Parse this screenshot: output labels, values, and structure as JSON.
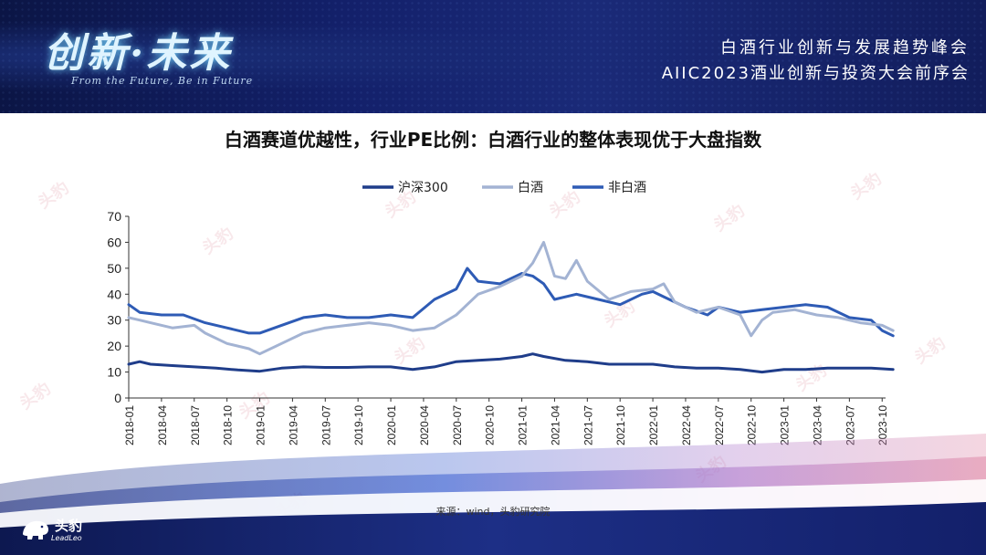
{
  "header": {
    "logo_text": "创新·未来",
    "logo_subtitle": "From the Future, Be in Future",
    "summit_title": "白酒行业创新与发展趋势峰会",
    "summit_subtitle": "AIIC2023酒业创新与投资大会前序会"
  },
  "watermark": "头豹",
  "colors": {
    "hs300": "#1f3d8a",
    "baijiu": "#a3b3d3",
    "non_baijiu": "#2e5bb5",
    "header_bg": "#13206a"
  },
  "chart_data": {
    "type": "line",
    "title": "白酒赛道优越性，行业PE比例：白酒行业的整体表现优于大盘指数",
    "xlabel": "",
    "ylabel": "",
    "ylim": [
      0,
      70
    ],
    "yticks": [
      0,
      10,
      20,
      30,
      40,
      50,
      60,
      70
    ],
    "x_tick_labels": [
      "2018-01",
      "2018-04",
      "2018-07",
      "2018-10",
      "2019-01",
      "2019-04",
      "2019-07",
      "2019-10",
      "2020-01",
      "2020-04",
      "2020-07",
      "2020-10",
      "2021-01",
      "2021-04",
      "2021-07",
      "2021-10",
      "2022-01",
      "2022-04",
      "2022-07",
      "2022-10",
      "2023-01",
      "2023-04",
      "2023-07",
      "2023-10"
    ],
    "legend_position": "top-center",
    "grid": false,
    "series": [
      {
        "name": "沪深300",
        "points": [
          [
            "2018-01",
            13
          ],
          [
            "2018-02",
            14
          ],
          [
            "2018-03",
            13
          ],
          [
            "2018-05",
            12.5
          ],
          [
            "2018-07",
            12
          ],
          [
            "2018-09",
            11.5
          ],
          [
            "2018-11",
            10.8
          ],
          [
            "2019-01",
            10.3
          ],
          [
            "2019-03",
            11.5
          ],
          [
            "2019-05",
            12
          ],
          [
            "2019-07",
            11.8
          ],
          [
            "2019-09",
            11.8
          ],
          [
            "2019-11",
            12
          ],
          [
            "2020-01",
            12
          ],
          [
            "2020-03",
            11
          ],
          [
            "2020-05",
            12
          ],
          [
            "2020-07",
            14
          ],
          [
            "2020-09",
            14.5
          ],
          [
            "2020-11",
            15
          ],
          [
            "2021-01",
            16
          ],
          [
            "2021-02",
            17
          ],
          [
            "2021-03",
            16
          ],
          [
            "2021-05",
            14.5
          ],
          [
            "2021-07",
            14
          ],
          [
            "2021-09",
            13
          ],
          [
            "2021-11",
            13
          ],
          [
            "2022-01",
            13
          ],
          [
            "2022-03",
            12
          ],
          [
            "2022-05",
            11.5
          ],
          [
            "2022-07",
            11.5
          ],
          [
            "2022-09",
            11
          ],
          [
            "2022-11",
            10
          ],
          [
            "2023-01",
            11
          ],
          [
            "2023-03",
            11
          ],
          [
            "2023-05",
            11.5
          ],
          [
            "2023-07",
            11.5
          ],
          [
            "2023-09",
            11.5
          ],
          [
            "2023-11",
            11
          ]
        ]
      },
      {
        "name": "白酒",
        "points": [
          [
            "2018-01",
            31
          ],
          [
            "2018-02",
            30
          ],
          [
            "2018-03",
            29
          ],
          [
            "2018-05",
            27
          ],
          [
            "2018-07",
            28
          ],
          [
            "2018-08",
            25
          ],
          [
            "2018-10",
            21
          ],
          [
            "2018-12",
            19
          ],
          [
            "2019-01",
            17
          ],
          [
            "2019-03",
            21
          ],
          [
            "2019-05",
            25
          ],
          [
            "2019-07",
            27
          ],
          [
            "2019-09",
            28
          ],
          [
            "2019-11",
            29
          ],
          [
            "2020-01",
            28
          ],
          [
            "2020-03",
            26
          ],
          [
            "2020-05",
            27
          ],
          [
            "2020-07",
            32
          ],
          [
            "2020-09",
            40
          ],
          [
            "2020-11",
            43
          ],
          [
            "2021-01",
            47
          ],
          [
            "2021-02",
            52
          ],
          [
            "2021-03",
            60
          ],
          [
            "2021-04",
            47
          ],
          [
            "2021-05",
            46
          ],
          [
            "2021-06",
            53
          ],
          [
            "2021-07",
            45
          ],
          [
            "2021-09",
            38
          ],
          [
            "2021-11",
            41
          ],
          [
            "2022-01",
            42
          ],
          [
            "2022-02",
            44
          ],
          [
            "2022-03",
            37
          ],
          [
            "2022-05",
            33
          ],
          [
            "2022-07",
            35
          ],
          [
            "2022-09",
            32
          ],
          [
            "2022-10",
            24
          ],
          [
            "2022-11",
            30
          ],
          [
            "2022-12",
            33
          ],
          [
            "2023-02",
            34
          ],
          [
            "2023-04",
            32
          ],
          [
            "2023-06",
            31
          ],
          [
            "2023-08",
            29
          ],
          [
            "2023-10",
            28
          ],
          [
            "2023-11",
            26
          ]
        ]
      },
      {
        "name": "非白酒",
        "points": [
          [
            "2018-01",
            36
          ],
          [
            "2018-02",
            33
          ],
          [
            "2018-04",
            32
          ],
          [
            "2018-06",
            32
          ],
          [
            "2018-08",
            29
          ],
          [
            "2018-10",
            27
          ],
          [
            "2018-12",
            25
          ],
          [
            "2019-01",
            25
          ],
          [
            "2019-03",
            28
          ],
          [
            "2019-05",
            31
          ],
          [
            "2019-07",
            32
          ],
          [
            "2019-09",
            31
          ],
          [
            "2019-11",
            31
          ],
          [
            "2020-01",
            32
          ],
          [
            "2020-03",
            31
          ],
          [
            "2020-05",
            38
          ],
          [
            "2020-07",
            42
          ],
          [
            "2020-08",
            50
          ],
          [
            "2020-09",
            45
          ],
          [
            "2020-11",
            44
          ],
          [
            "2021-01",
            48
          ],
          [
            "2021-02",
            47
          ],
          [
            "2021-03",
            44
          ],
          [
            "2021-04",
            38
          ],
          [
            "2021-06",
            40
          ],
          [
            "2021-08",
            38
          ],
          [
            "2021-10",
            36
          ],
          [
            "2021-12",
            40
          ],
          [
            "2022-01",
            41
          ],
          [
            "2022-02",
            39
          ],
          [
            "2022-04",
            35
          ],
          [
            "2022-06",
            32
          ],
          [
            "2022-07",
            35
          ],
          [
            "2022-09",
            33
          ],
          [
            "2022-11",
            34
          ],
          [
            "2023-01",
            35
          ],
          [
            "2023-03",
            36
          ],
          [
            "2023-05",
            35
          ],
          [
            "2023-07",
            31
          ],
          [
            "2023-09",
            30
          ],
          [
            "2023-10",
            26
          ],
          [
            "2023-11",
            24
          ]
        ]
      }
    ],
    "source": "来源：wind，头豹研究院"
  },
  "brand": {
    "name": "头豹",
    "name_en": "LeadLeo"
  }
}
